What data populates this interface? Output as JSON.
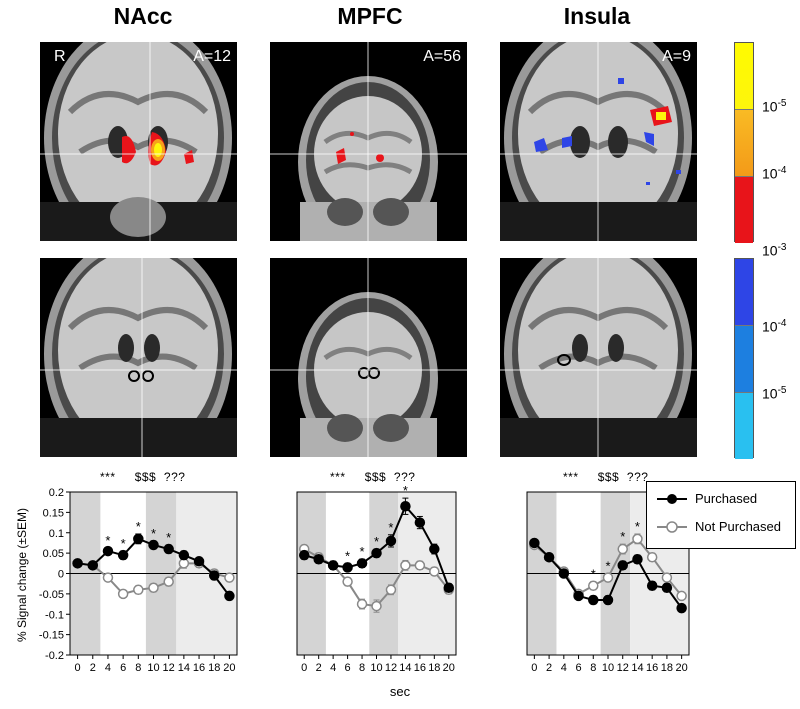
{
  "titles": [
    "NAcc",
    "MPFC",
    "Insula"
  ],
  "scan_labels": {
    "nacc_side": "R",
    "nacc_slice": "A=12",
    "mpfc_slice": "A=56",
    "insula_slice": "A=9"
  },
  "colorbar_labels": {
    "warm_top_base": "10",
    "warm_top_exp": "-5",
    "warm_mid_base": "10",
    "warm_mid_exp": "-4",
    "warm_bot_base": "10",
    "warm_bot_exp": "-3",
    "cool_mid_base": "10",
    "cool_mid_exp": "-4",
    "cool_bot_base": "10",
    "cool_bot_exp": "-5"
  },
  "colors": {
    "red": "#e8141a",
    "orange": "#f7a21b",
    "yellow": "#fdf50c",
    "blue_dark": "#2e45e6",
    "blue_mid": "#1d7fe0",
    "blue_light": "#29c0f0",
    "shade": "#d4d4d4",
    "purchased": "#000000",
    "not_purchased": "#888888"
  },
  "significance": [
    "***",
    "$$$",
    "???"
  ],
  "legend": {
    "purchased": "Purchased",
    "not_purchased": "Not Purchased"
  },
  "ylabel": "% Signal change (±SEM)",
  "xlabel": "sec",
  "chart_data": [
    {
      "type": "line",
      "title": "NAcc",
      "x": [
        0,
        2,
        4,
        6,
        8,
        10,
        12,
        14,
        16,
        18,
        20
      ],
      "ylim": [
        -0.2,
        0.2
      ],
      "yticks": [
        -0.2,
        -0.15,
        -0.1,
        -0.05,
        0,
        0.05,
        0.1,
        0.15,
        0.2
      ],
      "shaded_x": [
        [
          0,
          3
        ],
        [
          9,
          13
        ]
      ],
      "stars_at_x": [
        4,
        6,
        8,
        10,
        12
      ],
      "series": [
        {
          "name": "Purchased",
          "values": [
            0.025,
            0.02,
            0.055,
            0.045,
            0.085,
            0.07,
            0.06,
            0.045,
            0.03,
            -0.005,
            -0.055
          ],
          "sem": [
            0.007,
            0.006,
            0.008,
            0.01,
            0.012,
            0.01,
            0.01,
            0.01,
            0.009,
            0.01,
            0.01
          ]
        },
        {
          "name": "Not Purchased",
          "values": [
            0.025,
            0.02,
            -0.01,
            -0.05,
            -0.04,
            -0.035,
            -0.02,
            0.025,
            0.025,
            0.0,
            -0.01
          ],
          "sem": [
            0.007,
            0.006,
            0.009,
            0.009,
            0.01,
            0.01,
            0.01,
            0.012,
            0.01,
            0.01,
            0.01
          ]
        }
      ]
    },
    {
      "type": "line",
      "title": "MPFC",
      "x": [
        0,
        2,
        4,
        6,
        8,
        10,
        12,
        14,
        16,
        18,
        20
      ],
      "ylim": [
        -0.2,
        0.2
      ],
      "shaded_x": [
        [
          0,
          3
        ],
        [
          9,
          13
        ]
      ],
      "stars_at_x": [
        6,
        8,
        10,
        12,
        14
      ],
      "series": [
        {
          "name": "Purchased",
          "values": [
            0.045,
            0.035,
            0.02,
            0.015,
            0.025,
            0.05,
            0.08,
            0.165,
            0.125,
            0.06,
            -0.035
          ],
          "sem": [
            0.01,
            0.01,
            0.01,
            0.01,
            0.01,
            0.01,
            0.015,
            0.02,
            0.015,
            0.012,
            0.01
          ]
        },
        {
          "name": "Not Purchased",
          "values": [
            0.06,
            0.04,
            0.02,
            -0.02,
            -0.075,
            -0.08,
            -0.04,
            0.02,
            0.02,
            0.005,
            -0.04
          ],
          "sem": [
            0.01,
            0.01,
            0.01,
            0.01,
            0.012,
            0.015,
            0.012,
            0.012,
            0.01,
            0.01,
            0.01
          ]
        }
      ]
    },
    {
      "type": "line",
      "title": "Insula",
      "x": [
        0,
        2,
        4,
        6,
        8,
        10,
        12,
        14,
        16,
        18,
        20
      ],
      "ylim": [
        -0.2,
        0.2
      ],
      "shaded_x": [
        [
          0,
          3
        ],
        [
          9,
          13
        ]
      ],
      "stars_at_x": [
        8,
        10,
        12,
        14
      ],
      "series": [
        {
          "name": "Purchased",
          "values": [
            0.075,
            0.04,
            0.0,
            -0.055,
            -0.065,
            -0.065,
            0.02,
            0.035,
            -0.03,
            -0.035,
            -0.085
          ],
          "sem": [
            0.006,
            0.007,
            0.008,
            0.008,
            0.01,
            0.01,
            0.01,
            0.01,
            0.01,
            0.01,
            0.008
          ]
        },
        {
          "name": "Not Purchased",
          "values": [
            0.07,
            0.04,
            0.005,
            -0.05,
            -0.03,
            -0.01,
            0.06,
            0.085,
            0.04,
            -0.01,
            -0.055
          ],
          "sem": [
            0.006,
            0.007,
            0.008,
            0.008,
            0.01,
            0.01,
            0.012,
            0.012,
            0.01,
            0.01,
            0.008
          ]
        }
      ]
    }
  ]
}
